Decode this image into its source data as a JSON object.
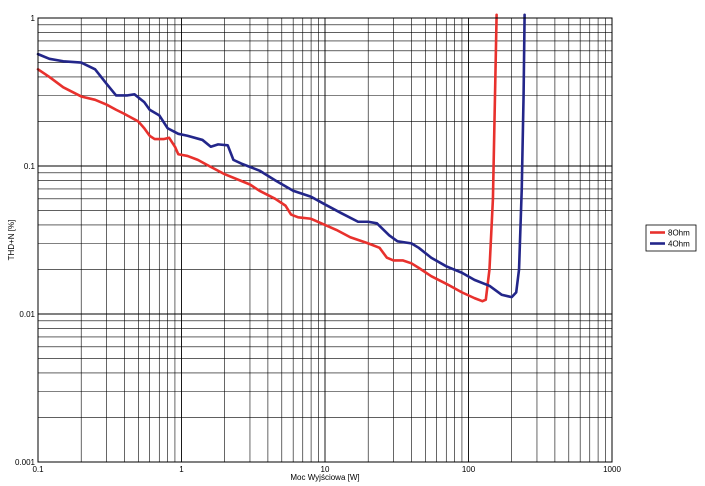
{
  "chart_data": {
    "type": "line",
    "xlabel": "Moc Wyjściowa [W]",
    "ylabel": "THD+N [%]",
    "xscale": "log",
    "yscale": "log",
    "xlim": [
      0.1,
      1000
    ],
    "ylim": [
      0.001,
      1
    ],
    "grid": true,
    "legend_position": "right",
    "x_tick_labels": [
      "0.1",
      "1",
      "10",
      "100",
      "1000"
    ],
    "y_tick_labels": [
      "0.001",
      "0.01",
      "0.1",
      "1"
    ],
    "series": [
      {
        "name": "8Ohm",
        "color": "#e8312d",
        "points": [
          [
            0.1,
            0.45
          ],
          [
            0.12,
            0.4
          ],
          [
            0.15,
            0.34
          ],
          [
            0.2,
            0.295
          ],
          [
            0.25,
            0.28
          ],
          [
            0.3,
            0.26
          ],
          [
            0.35,
            0.24
          ],
          [
            0.4,
            0.225
          ],
          [
            0.5,
            0.2
          ],
          [
            0.55,
            0.18
          ],
          [
            0.6,
            0.16
          ],
          [
            0.65,
            0.152
          ],
          [
            0.75,
            0.152
          ],
          [
            0.82,
            0.155
          ],
          [
            0.9,
            0.135
          ],
          [
            0.95,
            0.12
          ],
          [
            1.1,
            0.117
          ],
          [
            1.3,
            0.11
          ],
          [
            1.5,
            0.102
          ],
          [
            2,
            0.088
          ],
          [
            3,
            0.075
          ],
          [
            3.5,
            0.068
          ],
          [
            4.5,
            0.06
          ],
          [
            5.3,
            0.054
          ],
          [
            5.8,
            0.047
          ],
          [
            6.5,
            0.045
          ],
          [
            8,
            0.044
          ],
          [
            10,
            0.04
          ],
          [
            12,
            0.037
          ],
          [
            15,
            0.033
          ],
          [
            20,
            0.03
          ],
          [
            24,
            0.028
          ],
          [
            27,
            0.024
          ],
          [
            30,
            0.023
          ],
          [
            35,
            0.023
          ],
          [
            40,
            0.022
          ],
          [
            45,
            0.0205
          ],
          [
            55,
            0.018
          ],
          [
            70,
            0.016
          ],
          [
            90,
            0.014
          ],
          [
            110,
            0.0128
          ],
          [
            125,
            0.0122
          ],
          [
            132,
            0.0125
          ],
          [
            140,
            0.02
          ],
          [
            148,
            0.06
          ],
          [
            153,
            0.3
          ],
          [
            157,
            1.05
          ]
        ]
      },
      {
        "name": "4Ohm",
        "color": "#23268a",
        "points": [
          [
            0.1,
            0.57
          ],
          [
            0.12,
            0.53
          ],
          [
            0.15,
            0.51
          ],
          [
            0.2,
            0.5
          ],
          [
            0.25,
            0.45
          ],
          [
            0.3,
            0.36
          ],
          [
            0.35,
            0.3
          ],
          [
            0.42,
            0.3
          ],
          [
            0.47,
            0.305
          ],
          [
            0.55,
            0.27
          ],
          [
            0.6,
            0.24
          ],
          [
            0.7,
            0.22
          ],
          [
            0.8,
            0.18
          ],
          [
            0.95,
            0.165
          ],
          [
            1.1,
            0.16
          ],
          [
            1.4,
            0.15
          ],
          [
            1.6,
            0.135
          ],
          [
            1.8,
            0.14
          ],
          [
            2.1,
            0.138
          ],
          [
            2.3,
            0.11
          ],
          [
            2.6,
            0.104
          ],
          [
            3.5,
            0.093
          ],
          [
            4.5,
            0.08
          ],
          [
            6,
            0.068
          ],
          [
            8,
            0.062
          ],
          [
            10,
            0.055
          ],
          [
            13,
            0.048
          ],
          [
            17,
            0.042
          ],
          [
            20,
            0.042
          ],
          [
            23,
            0.041
          ],
          [
            28,
            0.034
          ],
          [
            32,
            0.031
          ],
          [
            40,
            0.03
          ],
          [
            45,
            0.028
          ],
          [
            55,
            0.024
          ],
          [
            70,
            0.021
          ],
          [
            90,
            0.019
          ],
          [
            110,
            0.017
          ],
          [
            140,
            0.0155
          ],
          [
            170,
            0.0135
          ],
          [
            200,
            0.013
          ],
          [
            215,
            0.014
          ],
          [
            225,
            0.02
          ],
          [
            235,
            0.07
          ],
          [
            242,
            0.3
          ],
          [
            246,
            1.05
          ]
        ]
      }
    ]
  }
}
